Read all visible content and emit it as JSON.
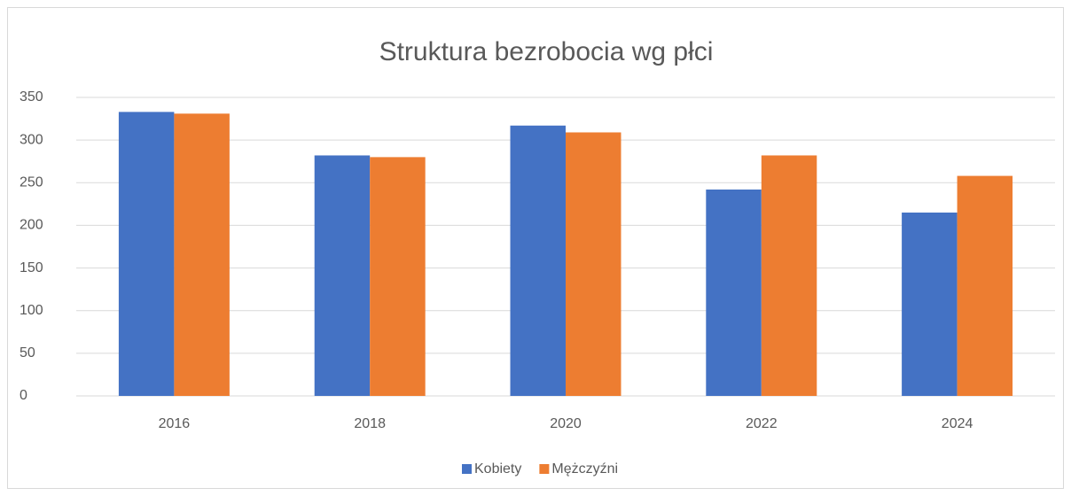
{
  "chart_data": {
    "type": "bar",
    "title": "Struktura bezrobocia wg płci",
    "categories": [
      "2016",
      "2018",
      "2020",
      "2022",
      "2024"
    ],
    "series": [
      {
        "name": "Kobiety",
        "color": "#4472c4",
        "values": [
          333,
          282,
          317,
          242,
          215
        ]
      },
      {
        "name": "Mężczyźni",
        "color": "#ed7d31",
        "values": [
          331,
          280,
          309,
          282,
          258
        ]
      }
    ],
    "ylim": [
      0,
      350
    ],
    "yticks": [
      0,
      50,
      100,
      150,
      200,
      250,
      300,
      350
    ],
    "grid": true,
    "legend": "bottom"
  }
}
